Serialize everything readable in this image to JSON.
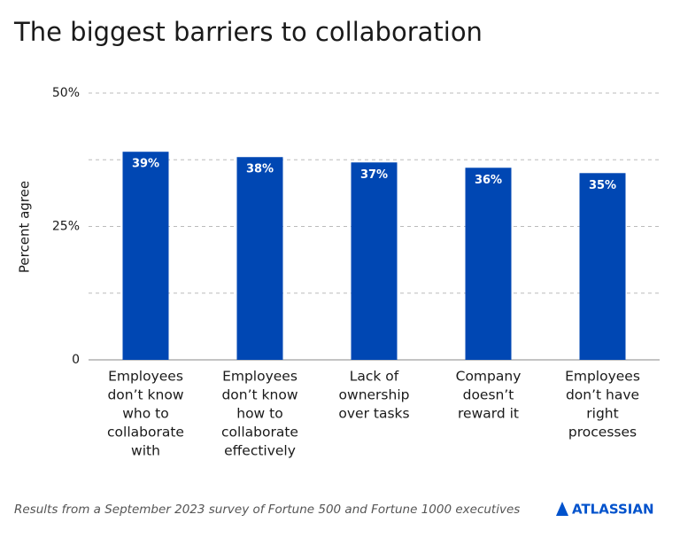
{
  "chart_data": {
    "type": "bar",
    "title": "The biggest barriers to collaboration",
    "y_label": "Percent agree",
    "categories": [
      [
        "Employees",
        "don’t know",
        "who to",
        "collaborate",
        "with"
      ],
      [
        "Employees",
        "don’t know",
        "how to",
        "collaborate",
        "effectively"
      ],
      [
        "Lack of",
        "ownership",
        "over tasks"
      ],
      [
        "Company",
        "doesn’t",
        "reward it"
      ],
      [
        "Employees",
        "don’t have",
        "right",
        "processes"
      ]
    ],
    "values": [
      39,
      38,
      37,
      36,
      35
    ],
    "value_labels": [
      "39%",
      "38%",
      "37%",
      "36%",
      "35%"
    ],
    "color": "#0047b3",
    "ylim": [
      0,
      50
    ],
    "yticks": [
      0,
      {
        "value": 25,
        "label": "25%"
      },
      {
        "value": 50,
        "label": "50%"
      }
    ],
    "minor_yticks": [
      12.5,
      37.5
    ],
    "grid": true
  },
  "footer": {
    "note": "Results from a September 2023 survey of Fortune 500 and Fortune 1000 executives",
    "logo": "ATLASSIAN"
  }
}
